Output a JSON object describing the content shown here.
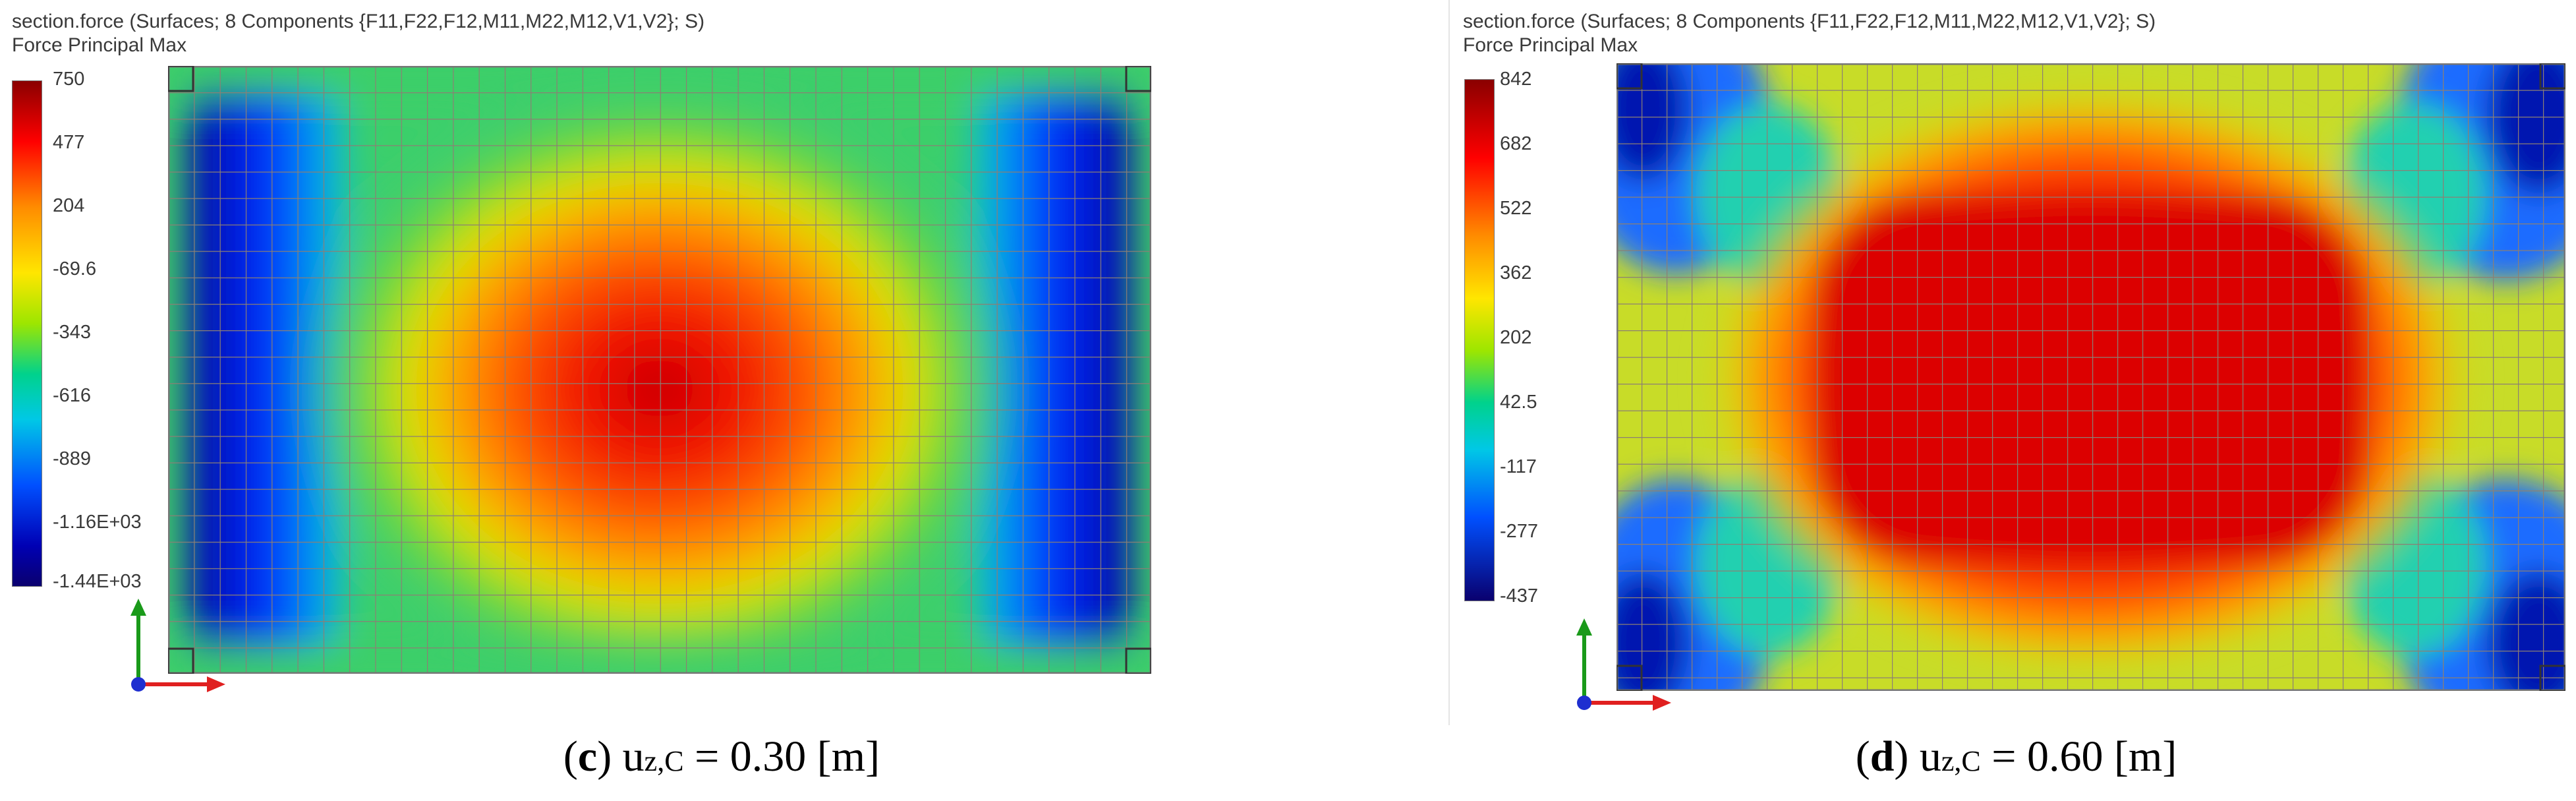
{
  "panels": [
    {
      "title": "section.force (Surfaces; 8 Components {F11,F22,F12,M11,M22,M12,V1,V2}; S)",
      "subtitle": "Force Principal Max",
      "ticks": [
        "750",
        "477",
        "204",
        "-69.6",
        "-343",
        "-616",
        "-889",
        "-1.16E+03",
        "-1.44E+03"
      ],
      "caption_letter": "c",
      "caption_paren_open": "(",
      "caption_paren_close": ")",
      "caption_var": "u",
      "caption_sub": "z,C",
      "caption_value": " = 0.30 [m]"
    },
    {
      "title": "section.force (Surfaces; 8 Components {F11,F22,F12,M11,M22,M12,V1,V2}; S)",
      "subtitle": "Force Principal Max",
      "ticks": [
        "842",
        "682",
        "522",
        "362",
        "202",
        "42.5",
        "-117",
        "-277",
        "-437"
      ],
      "caption_letter": "d",
      "caption_paren_open": "(",
      "caption_paren_close": ")",
      "caption_var": "u",
      "caption_sub": "z,C",
      "caption_value": " = 0.60 [m]"
    }
  ],
  "colors": {
    "mesh_line": "#8c7f74",
    "axis_y": "#1a9a1a",
    "axis_x": "#e02020",
    "axis_origin": "#1f2fd0"
  }
}
